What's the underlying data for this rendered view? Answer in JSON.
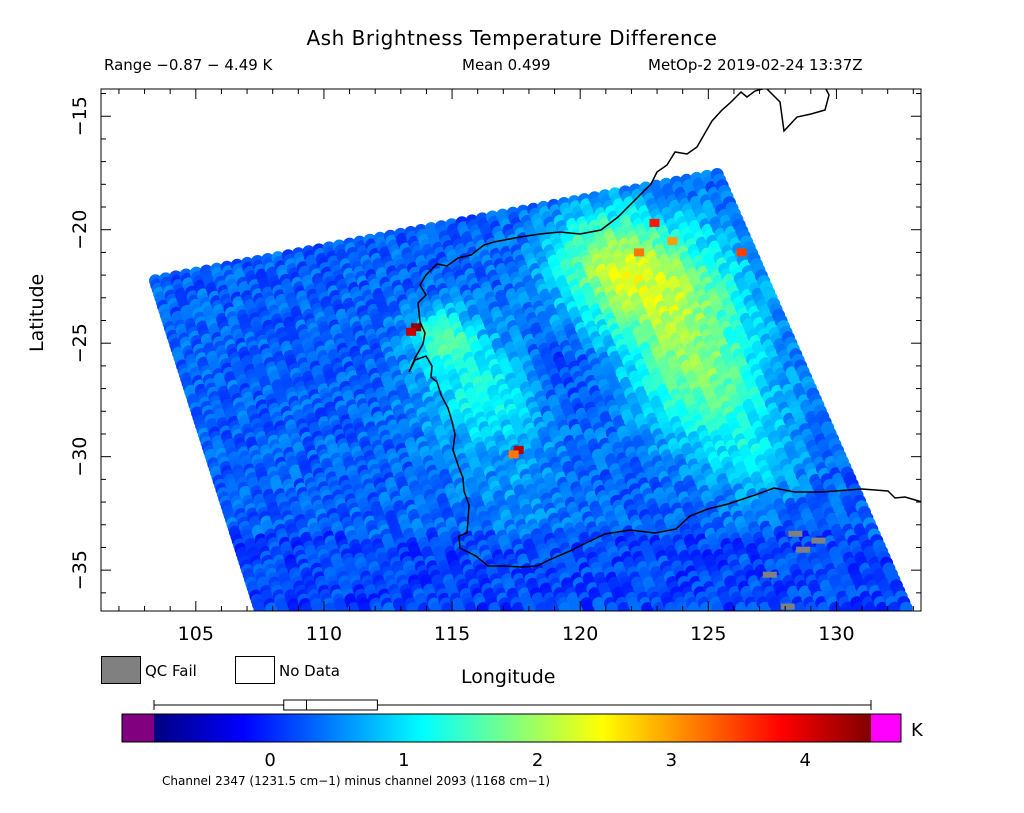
{
  "title": "Ash Brightness Temperature Difference",
  "range_text": "Range −0.87 − 4.49 K",
  "mean_text": "Mean 0.499",
  "satellite_text": "MetOp-2 2019-02-24 13:37Z",
  "legend": {
    "qc_fail": "QC Fail",
    "qc_fail_color": "#808080",
    "no_data": "No Data"
  },
  "colorbar": {
    "unit": "K",
    "min": -0.87,
    "max": 4.49,
    "box_whisker": {
      "min": -0.87,
      "q1": 0.1,
      "median": 0.27,
      "q3": 0.8,
      "max": 4.49
    },
    "under_color": "#800080",
    "over_color": "#ff00ff",
    "stops": [
      "#000080",
      "#0000ff",
      "#0080ff",
      "#00ffff",
      "#80ff80",
      "#ffff00",
      "#ff8000",
      "#ff0000",
      "#800000"
    ],
    "ticks": [
      "0",
      "1",
      "2",
      "3",
      "4"
    ],
    "caption": "Channel 2347 (1231.5 cm−1) minus channel 2093 (1168 cm−1)"
  },
  "chart_data": {
    "type": "heatmap",
    "title": "Ash Brightness Temperature Difference",
    "xlabel": "Longitude",
    "ylabel": "Latitude",
    "xlim": [
      101.3,
      133.3
    ],
    "ylim": [
      -36.8,
      -13.8
    ],
    "x_ticks": [
      "105",
      "110",
      "115",
      "120",
      "125",
      "130"
    ],
    "y_ticks": [
      "−15",
      "−20",
      "−25",
      "−30",
      "−35"
    ],
    "swath_corners": [
      [
        103.2,
        -22.2
      ],
      [
        125.5,
        -17.4
      ],
      [
        133.0,
        -36.8
      ],
      [
        107.3,
        -36.8
      ]
    ],
    "background_value": 0.3,
    "regions": [
      {
        "lon": 116.4,
        "lat": -27.3,
        "r": 2.4,
        "value": 1.25
      },
      {
        "lon": 114.7,
        "lat": -24.8,
        "r": 1.3,
        "value": 1.4
      },
      {
        "lon": 123.5,
        "lat": -23.0,
        "r": 3.0,
        "value": 1.95
      },
      {
        "lon": 121.0,
        "lat": -21.2,
        "r": 2.2,
        "value": 1.5
      },
      {
        "lon": 125.0,
        "lat": -27.0,
        "r": 2.6,
        "value": 1.55
      },
      {
        "lon": 127.0,
        "lat": -30.2,
        "r": 1.8,
        "value": 0.95
      },
      {
        "lon": 117.6,
        "lat": -31.8,
        "r": 2.0,
        "value": 0.6
      },
      {
        "lon": 119.2,
        "lat": -26.3,
        "r": 1.8,
        "value": -0.1
      }
    ],
    "highlights": [
      {
        "lon": 113.6,
        "lat": -24.3,
        "value": 4.4
      },
      {
        "lon": 113.4,
        "lat": -24.5,
        "value": 4.1
      },
      {
        "lon": 117.6,
        "lat": -29.7,
        "value": 4.2
      },
      {
        "lon": 117.4,
        "lat": -29.9,
        "value": 3.2
      },
      {
        "lon": 122.9,
        "lat": -19.7,
        "value": 3.7
      },
      {
        "lon": 122.3,
        "lat": -21.0,
        "value": 3.2
      },
      {
        "lon": 126.3,
        "lat": -21.0,
        "value": 3.5
      },
      {
        "lon": 123.6,
        "lat": -20.5,
        "value": 3.0
      }
    ],
    "qc_fail_points": [
      [
        128.4,
        -33.4
      ],
      [
        129.3,
        -33.7
      ],
      [
        128.7,
        -34.1
      ],
      [
        127.4,
        -35.2
      ],
      [
        128.1,
        -36.6
      ]
    ]
  }
}
